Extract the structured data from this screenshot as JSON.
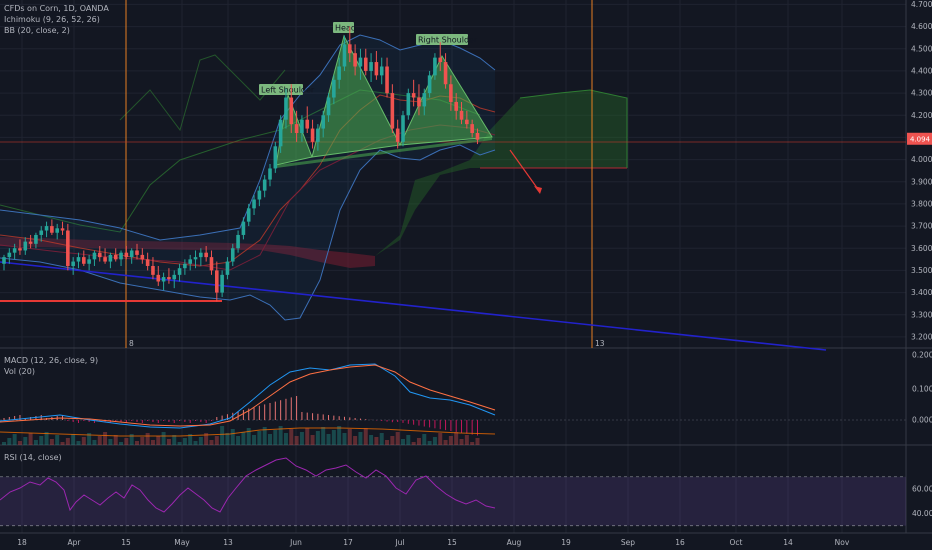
{
  "legend": {
    "symbol": "CFDs on Corn, 1D, OANDA",
    "ichimoku": "Ichimoku (9, 26, 52, 26)",
    "bb": "BB (20, close, 2)",
    "macd": "MACD (12, 26, close, 9)",
    "vol": "Vol (20)",
    "rsi": "RSI (14, close)"
  },
  "chart_data": {
    "type": "candlestick",
    "title": "CFDs on Corn, 1D, OANDA",
    "price_axis": {
      "ticks": [
        "4.700",
        "4.600",
        "4.500",
        "4.400",
        "4.300",
        "4.200",
        "4.100",
        "4.000",
        "3.900",
        "3.800",
        "3.700",
        "3.600",
        "3.500",
        "3.400",
        "3.300",
        "3.200"
      ],
      "ylim": [
        3.15,
        4.72
      ]
    },
    "current_price": "4.094",
    "macd_axis": {
      "ticks": [
        "0.200",
        "0.100",
        "0.000"
      ]
    },
    "rsi_axis": {
      "ticks": [
        "60.00",
        "40.00"
      ],
      "upper_band": 70,
      "lower_band": 30
    },
    "x_ticks": [
      "18",
      "Apr",
      "15",
      "May",
      "13",
      "Jun",
      "17",
      "Jul",
      "15",
      "Aug",
      "19",
      "Sep",
      "16",
      "Oct",
      "14",
      "Nov"
    ],
    "vertical_markers": [
      {
        "label": "8"
      },
      {
        "label": "13"
      }
    ],
    "pattern": {
      "name": "Head and Shoulders",
      "labels": [
        "Left Shoulder",
        "Head",
        "Right Shoulder"
      ],
      "neckline": [
        4.04,
        4.12
      ]
    },
    "support_level": 3.35,
    "candles": [
      {
        "o": 3.53,
        "h": 3.57,
        "l": 3.5,
        "c": 3.56
      },
      {
        "o": 3.56,
        "h": 3.6,
        "l": 3.53,
        "c": 3.58
      },
      {
        "o": 3.58,
        "h": 3.62,
        "l": 3.55,
        "c": 3.6
      },
      {
        "o": 3.6,
        "h": 3.64,
        "l": 3.57,
        "c": 3.59
      },
      {
        "o": 3.59,
        "h": 3.65,
        "l": 3.57,
        "c": 3.63
      },
      {
        "o": 3.63,
        "h": 3.66,
        "l": 3.6,
        "c": 3.62
      },
      {
        "o": 3.62,
        "h": 3.67,
        "l": 3.6,
        "c": 3.66
      },
      {
        "o": 3.66,
        "h": 3.7,
        "l": 3.63,
        "c": 3.68
      },
      {
        "o": 3.68,
        "h": 3.72,
        "l": 3.65,
        "c": 3.7
      },
      {
        "o": 3.7,
        "h": 3.73,
        "l": 3.66,
        "c": 3.67
      },
      {
        "o": 3.67,
        "h": 3.71,
        "l": 3.64,
        "c": 3.69
      },
      {
        "o": 3.69,
        "h": 3.72,
        "l": 3.66,
        "c": 3.68
      },
      {
        "o": 3.68,
        "h": 3.71,
        "l": 3.5,
        "c": 3.52
      },
      {
        "o": 3.52,
        "h": 3.56,
        "l": 3.48,
        "c": 3.54
      },
      {
        "o": 3.54,
        "h": 3.58,
        "l": 3.51,
        "c": 3.56
      },
      {
        "o": 3.56,
        "h": 3.59,
        "l": 3.52,
        "c": 3.53
      },
      {
        "o": 3.53,
        "h": 3.57,
        "l": 3.5,
        "c": 3.55
      },
      {
        "o": 3.55,
        "h": 3.59,
        "l": 3.52,
        "c": 3.58
      },
      {
        "o": 3.58,
        "h": 3.61,
        "l": 3.54,
        "c": 3.56
      },
      {
        "o": 3.56,
        "h": 3.6,
        "l": 3.53,
        "c": 3.54
      },
      {
        "o": 3.54,
        "h": 3.58,
        "l": 3.51,
        "c": 3.57
      },
      {
        "o": 3.57,
        "h": 3.6,
        "l": 3.54,
        "c": 3.55
      },
      {
        "o": 3.55,
        "h": 3.59,
        "l": 3.52,
        "c": 3.58
      },
      {
        "o": 3.58,
        "h": 3.61,
        "l": 3.55,
        "c": 3.56
      },
      {
        "o": 3.56,
        "h": 3.6,
        "l": 3.53,
        "c": 3.59
      },
      {
        "o": 3.59,
        "h": 3.62,
        "l": 3.55,
        "c": 3.57
      },
      {
        "o": 3.57,
        "h": 3.6,
        "l": 3.53,
        "c": 3.55
      },
      {
        "o": 3.55,
        "h": 3.58,
        "l": 3.5,
        "c": 3.52
      },
      {
        "o": 3.52,
        "h": 3.56,
        "l": 3.46,
        "c": 3.48
      },
      {
        "o": 3.48,
        "h": 3.52,
        "l": 3.43,
        "c": 3.45
      },
      {
        "o": 3.45,
        "h": 3.49,
        "l": 3.41,
        "c": 3.47
      },
      {
        "o": 3.47,
        "h": 3.51,
        "l": 3.44,
        "c": 3.46
      },
      {
        "o": 3.46,
        "h": 3.5,
        "l": 3.42,
        "c": 3.48
      },
      {
        "o": 3.48,
        "h": 3.53,
        "l": 3.45,
        "c": 3.51
      },
      {
        "o": 3.51,
        "h": 3.55,
        "l": 3.48,
        "c": 3.53
      },
      {
        "o": 3.53,
        "h": 3.57,
        "l": 3.5,
        "c": 3.55
      },
      {
        "o": 3.55,
        "h": 3.59,
        "l": 3.51,
        "c": 3.56
      },
      {
        "o": 3.56,
        "h": 3.6,
        "l": 3.52,
        "c": 3.58
      },
      {
        "o": 3.58,
        "h": 3.61,
        "l": 3.54,
        "c": 3.56
      },
      {
        "o": 3.56,
        "h": 3.59,
        "l": 3.48,
        "c": 3.5
      },
      {
        "o": 3.5,
        "h": 3.54,
        "l": 3.36,
        "c": 3.4
      },
      {
        "o": 3.4,
        "h": 3.5,
        "l": 3.38,
        "c": 3.48
      },
      {
        "o": 3.48,
        "h": 3.56,
        "l": 3.46,
        "c": 3.54
      },
      {
        "o": 3.54,
        "h": 3.62,
        "l": 3.52,
        "c": 3.6
      },
      {
        "o": 3.6,
        "h": 3.68,
        "l": 3.58,
        "c": 3.66
      },
      {
        "o": 3.66,
        "h": 3.74,
        "l": 3.64,
        "c": 3.72
      },
      {
        "o": 3.72,
        "h": 3.8,
        "l": 3.7,
        "c": 3.78
      },
      {
        "o": 3.78,
        "h": 3.84,
        "l": 3.75,
        "c": 3.82
      },
      {
        "o": 3.82,
        "h": 3.88,
        "l": 3.79,
        "c": 3.86
      },
      {
        "o": 3.86,
        "h": 3.93,
        "l": 3.83,
        "c": 3.91
      },
      {
        "o": 3.91,
        "h": 3.98,
        "l": 3.88,
        "c": 3.96
      },
      {
        "o": 3.96,
        "h": 4.08,
        "l": 3.94,
        "c": 4.06
      },
      {
        "o": 4.06,
        "h": 4.2,
        "l": 4.03,
        "c": 4.18
      },
      {
        "o": 4.18,
        "h": 4.32,
        "l": 4.14,
        "c": 4.28
      },
      {
        "o": 4.28,
        "h": 4.34,
        "l": 4.12,
        "c": 4.16
      },
      {
        "o": 4.16,
        "h": 4.22,
        "l": 4.08,
        "c": 4.12
      },
      {
        "o": 4.12,
        "h": 4.2,
        "l": 4.08,
        "c": 4.18
      },
      {
        "o": 4.18,
        "h": 4.24,
        "l": 4.12,
        "c": 4.14
      },
      {
        "o": 4.14,
        "h": 4.18,
        "l": 4.05,
        "c": 4.08
      },
      {
        "o": 4.08,
        "h": 4.16,
        "l": 4.04,
        "c": 4.14
      },
      {
        "o": 4.14,
        "h": 4.22,
        "l": 4.1,
        "c": 4.2
      },
      {
        "o": 4.2,
        "h": 4.3,
        "l": 4.17,
        "c": 4.28
      },
      {
        "o": 4.28,
        "h": 4.38,
        "l": 4.25,
        "c": 4.36
      },
      {
        "o": 4.36,
        "h": 4.46,
        "l": 4.32,
        "c": 4.42
      },
      {
        "o": 4.42,
        "h": 4.56,
        "l": 4.4,
        "c": 4.52
      },
      {
        "o": 4.52,
        "h": 4.6,
        "l": 4.44,
        "c": 4.48
      },
      {
        "o": 4.48,
        "h": 4.52,
        "l": 4.38,
        "c": 4.42
      },
      {
        "o": 4.42,
        "h": 4.5,
        "l": 4.36,
        "c": 4.46
      },
      {
        "o": 4.46,
        "h": 4.5,
        "l": 4.38,
        "c": 4.4
      },
      {
        "o": 4.4,
        "h": 4.48,
        "l": 4.35,
        "c": 4.44
      },
      {
        "o": 4.44,
        "h": 4.49,
        "l": 4.36,
        "c": 4.38
      },
      {
        "o": 4.38,
        "h": 4.46,
        "l": 4.34,
        "c": 4.42
      },
      {
        "o": 4.42,
        "h": 4.46,
        "l": 4.28,
        "c": 4.3
      },
      {
        "o": 4.3,
        "h": 4.34,
        "l": 4.12,
        "c": 4.14
      },
      {
        "o": 4.14,
        "h": 4.18,
        "l": 4.05,
        "c": 4.08
      },
      {
        "o": 4.08,
        "h": 4.22,
        "l": 4.06,
        "c": 4.2
      },
      {
        "o": 4.2,
        "h": 4.32,
        "l": 4.18,
        "c": 4.3
      },
      {
        "o": 4.3,
        "h": 4.36,
        "l": 4.24,
        "c": 4.28
      },
      {
        "o": 4.28,
        "h": 4.34,
        "l": 4.2,
        "c": 4.24
      },
      {
        "o": 4.24,
        "h": 4.32,
        "l": 4.2,
        "c": 4.3
      },
      {
        "o": 4.3,
        "h": 4.4,
        "l": 4.28,
        "c": 4.38
      },
      {
        "o": 4.38,
        "h": 4.48,
        "l": 4.36,
        "c": 4.46
      },
      {
        "o": 4.46,
        "h": 4.53,
        "l": 4.4,
        "c": 4.44
      },
      {
        "o": 4.44,
        "h": 4.48,
        "l": 4.32,
        "c": 4.34
      },
      {
        "o": 4.34,
        "h": 4.38,
        "l": 4.22,
        "c": 4.26
      },
      {
        "o": 4.26,
        "h": 4.3,
        "l": 4.18,
        "c": 4.22
      },
      {
        "o": 4.22,
        "h": 4.26,
        "l": 4.16,
        "c": 4.18
      },
      {
        "o": 4.18,
        "h": 4.22,
        "l": 4.14,
        "c": 4.16
      },
      {
        "o": 4.16,
        "h": 4.18,
        "l": 4.1,
        "c": 4.12
      },
      {
        "o": 4.12,
        "h": 4.14,
        "l": 4.07,
        "c": 4.09
      }
    ]
  }
}
